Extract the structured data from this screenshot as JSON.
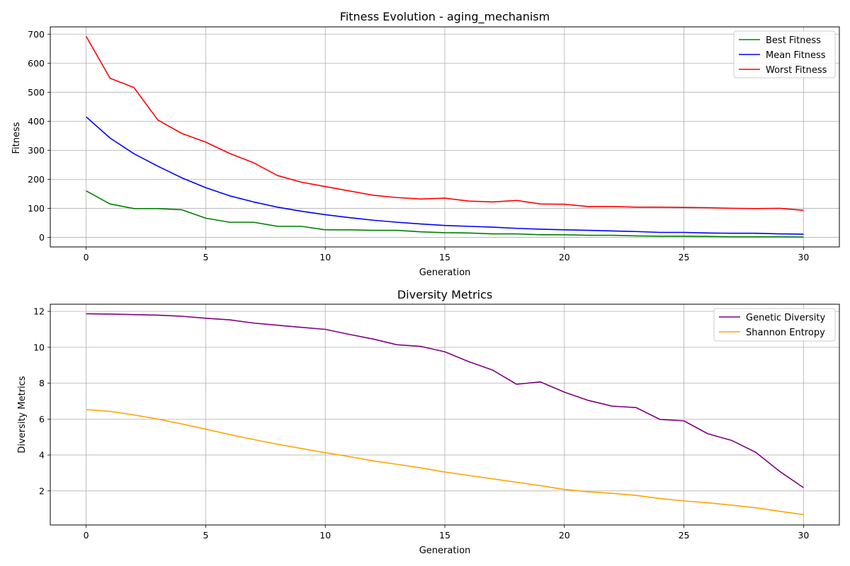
{
  "chart_data": [
    {
      "type": "line",
      "title": "Fitness Evolution - aging_mechanism",
      "xlabel": "Generation",
      "ylabel": "Fitness",
      "xlim": [
        -1.5,
        31.5
      ],
      "ylim": [
        -33,
        725
      ],
      "xticks": [
        0,
        5,
        10,
        15,
        20,
        25,
        30
      ],
      "yticks": [
        0,
        100,
        200,
        300,
        400,
        500,
        600,
        700
      ],
      "grid": true,
      "legend_position": "top-right",
      "x": [
        0,
        1,
        2,
        3,
        4,
        5,
        6,
        7,
        8,
        9,
        10,
        11,
        12,
        13,
        14,
        15,
        16,
        17,
        18,
        19,
        20,
        21,
        22,
        23,
        24,
        25,
        26,
        27,
        28,
        29,
        30
      ],
      "series": [
        {
          "name": "Best Fitness",
          "color": "#008000",
          "values": [
            160,
            115,
            99,
            99,
            95,
            66,
            52,
            52,
            38,
            38,
            26,
            26,
            24,
            24,
            19,
            16,
            15,
            12,
            12,
            9,
            9,
            7,
            7,
            5,
            4,
            4,
            3,
            2,
            2,
            2,
            1
          ]
        },
        {
          "name": "Mean Fitness",
          "color": "#0000ff",
          "values": [
            415,
            342,
            288,
            245,
            205,
            171,
            143,
            122,
            104,
            90,
            78,
            68,
            59,
            52,
            46,
            41,
            38,
            35,
            31,
            28,
            26,
            24,
            22,
            20,
            17,
            17,
            15,
            14,
            14,
            12,
            11
          ]
        },
        {
          "name": "Worst Fitness",
          "color": "#ff0000",
          "values": [
            692,
            548,
            516,
            404,
            358,
            328,
            289,
            257,
            213,
            190,
            175,
            160,
            145,
            137,
            132,
            135,
            125,
            122,
            127,
            115,
            114,
            106,
            106,
            104,
            104,
            103,
            102,
            100,
            99,
            100,
            93
          ]
        }
      ]
    },
    {
      "type": "line",
      "title": "Diversity Metrics",
      "xlabel": "Generation",
      "ylabel": "Diversity Metrics",
      "xlim": [
        -1.5,
        31.5
      ],
      "ylim": [
        0.1,
        12.4
      ],
      "xticks": [
        0,
        5,
        10,
        15,
        20,
        25,
        30
      ],
      "yticks": [
        2,
        4,
        6,
        8,
        10,
        12
      ],
      "grid": true,
      "legend_position": "top-right",
      "x": [
        0,
        1,
        2,
        3,
        4,
        5,
        6,
        7,
        8,
        9,
        10,
        11,
        12,
        13,
        14,
        15,
        16,
        17,
        18,
        19,
        20,
        21,
        22,
        23,
        24,
        25,
        26,
        27,
        28,
        29,
        30
      ],
      "series": [
        {
          "name": "Genetic Diversity",
          "color": "#800080",
          "values": [
            11.87,
            11.85,
            11.82,
            11.79,
            11.73,
            11.62,
            11.53,
            11.35,
            11.23,
            11.11,
            11.0,
            10.72,
            10.46,
            10.14,
            10.05,
            9.75,
            9.2,
            8.73,
            7.94,
            8.07,
            7.5,
            7.04,
            6.72,
            6.64,
            5.98,
            5.9,
            5.18,
            4.81,
            4.15,
            3.09,
            2.18
          ]
        },
        {
          "name": "Shannon Entropy",
          "color": "#ffa500",
          "values": [
            6.53,
            6.43,
            6.23,
            6.0,
            5.73,
            5.44,
            5.14,
            4.86,
            4.6,
            4.36,
            4.13,
            3.91,
            3.67,
            3.48,
            3.28,
            3.05,
            2.86,
            2.67,
            2.48,
            2.29,
            2.08,
            1.95,
            1.86,
            1.75,
            1.57,
            1.44,
            1.34,
            1.2,
            1.06,
            0.86,
            0.68
          ]
        }
      ]
    }
  ]
}
